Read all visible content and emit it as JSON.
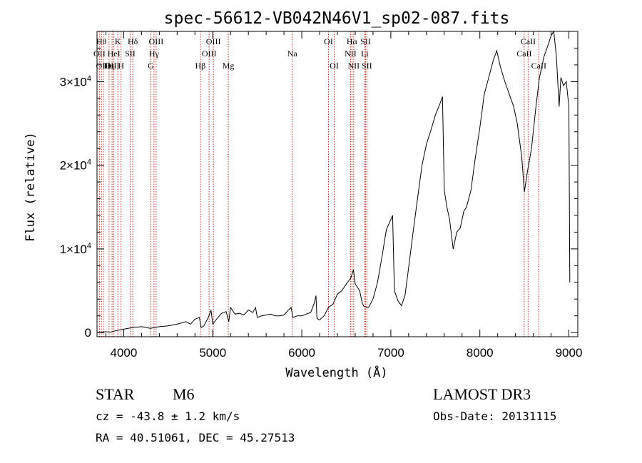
{
  "chart_data": {
    "type": "line",
    "title": "spec-56612-VB042N46V1_sp02-087.fits",
    "xlabel": "Wavelength (Å)",
    "ylabel": "Flux (relative)",
    "xlim": [
      3700,
      9100
    ],
    "ylim": [
      -500,
      36000
    ],
    "x_ticks": [
      4000,
      5000,
      6000,
      7000,
      8000,
      9000
    ],
    "y_ticks": [
      {
        "value": 0,
        "mant": "0",
        "exp": ""
      },
      {
        "value": 10000,
        "mant": "1×10",
        "exp": "4"
      },
      {
        "value": 20000,
        "mant": "2×10",
        "exp": "4"
      },
      {
        "value": 30000,
        "mant": "3×10",
        "exp": "4"
      }
    ],
    "spectral_lines": [
      {
        "wave": 3727,
        "label": "OII",
        "row": 2
      },
      {
        "wave": 3750,
        "label": "Hθ",
        "row": 1
      },
      {
        "wave": 3771,
        "label": "OIII",
        "row": 3
      },
      {
        "wave": 3835,
        "label": "Hη",
        "row": 3
      },
      {
        "wave": 3869,
        "label": "OIII",
        "row": 3
      },
      {
        "wave": 3889,
        "label": "HeI",
        "row": 2
      },
      {
        "wave": 3934,
        "label": "K",
        "row": 1
      },
      {
        "wave": 3970,
        "label": "H",
        "row": 3
      },
      {
        "wave": 4072,
        "label": "SII",
        "row": 2
      },
      {
        "wave": 4102,
        "label": "Hδ",
        "row": 1
      },
      {
        "wave": 4305,
        "label": "G",
        "row": 3
      },
      {
        "wave": 4340,
        "label": "Hγ",
        "row": 2
      },
      {
        "wave": 4364,
        "label": "OIII",
        "row": 1
      },
      {
        "wave": 4861,
        "label": "Hβ",
        "row": 3
      },
      {
        "wave": 4959,
        "label": "OIII",
        "row": 2
      },
      {
        "wave": 5007,
        "label": "OIII",
        "row": 1
      },
      {
        "wave": 5175,
        "label": "Mg",
        "row": 3
      },
      {
        "wave": 5893,
        "label": "Na",
        "row": 2
      },
      {
        "wave": 6300,
        "label": "OI",
        "row": 1
      },
      {
        "wave": 6364,
        "label": "OI",
        "row": 3
      },
      {
        "wave": 6548,
        "label": "NII",
        "row": 2
      },
      {
        "wave": 6563,
        "label": "Hα",
        "row": 1
      },
      {
        "wave": 6583,
        "label": "NII",
        "row": 3
      },
      {
        "wave": 6707,
        "label": "Li",
        "row": 2
      },
      {
        "wave": 6716,
        "label": "SII",
        "row": 1
      },
      {
        "wave": 6731,
        "label": "SII",
        "row": 3
      },
      {
        "wave": 8498,
        "label": "CaII",
        "row": 2
      },
      {
        "wave": 8542,
        "label": "CaII",
        "row": 1
      },
      {
        "wave": 8662,
        "label": "CaII",
        "row": 3
      }
    ],
    "series": [
      {
        "name": "flux",
        "points": [
          [
            3700,
            0
          ],
          [
            3800,
            100
          ],
          [
            3850,
            50
          ],
          [
            3900,
            200
          ],
          [
            4000,
            400
          ],
          [
            4100,
            600
          ],
          [
            4200,
            700
          ],
          [
            4300,
            500
          ],
          [
            4400,
            700
          ],
          [
            4500,
            800
          ],
          [
            4600,
            1000
          ],
          [
            4700,
            1300
          ],
          [
            4750,
            1000
          ],
          [
            4800,
            1600
          ],
          [
            4850,
            1800
          ],
          [
            4870,
            600
          ],
          [
            4900,
            800
          ],
          [
            4950,
            1800
          ],
          [
            4980,
            2700
          ],
          [
            5000,
            1000
          ],
          [
            5050,
            1700
          ],
          [
            5100,
            2300
          ],
          [
            5150,
            2500
          ],
          [
            5180,
            1300
          ],
          [
            5200,
            3000
          ],
          [
            5250,
            2200
          ],
          [
            5300,
            2300
          ],
          [
            5350,
            2100
          ],
          [
            5400,
            2700
          ],
          [
            5450,
            2400
          ],
          [
            5480,
            3000
          ],
          [
            5500,
            1800
          ],
          [
            5550,
            2000
          ],
          [
            5600,
            2100
          ],
          [
            5650,
            2200
          ],
          [
            5700,
            2000
          ],
          [
            5750,
            2000
          ],
          [
            5800,
            2100
          ],
          [
            5850,
            2700
          ],
          [
            5880,
            3000
          ],
          [
            5900,
            1800
          ],
          [
            5950,
            2000
          ],
          [
            6000,
            2000
          ],
          [
            6050,
            2200
          ],
          [
            6100,
            2400
          ],
          [
            6140,
            3500
          ],
          [
            6160,
            4400
          ],
          [
            6170,
            1700
          ],
          [
            6200,
            1500
          ],
          [
            6250,
            2000
          ],
          [
            6300,
            3000
          ],
          [
            6350,
            3400
          ],
          [
            6400,
            4600
          ],
          [
            6450,
            5000
          ],
          [
            6500,
            5800
          ],
          [
            6550,
            6500
          ],
          [
            6580,
            7500
          ],
          [
            6600,
            5800
          ],
          [
            6650,
            5000
          ],
          [
            6680,
            3500
          ],
          [
            6700,
            3100
          ],
          [
            6750,
            3000
          ],
          [
            6800,
            4000
          ],
          [
            6850,
            6000
          ],
          [
            6900,
            9000
          ],
          [
            6950,
            12300
          ],
          [
            7000,
            13500
          ],
          [
            7020,
            14000
          ],
          [
            7040,
            5000
          ],
          [
            7080,
            3800
          ],
          [
            7120,
            3200
          ],
          [
            7160,
            4500
          ],
          [
            7200,
            7800
          ],
          [
            7250,
            12000
          ],
          [
            7300,
            16000
          ],
          [
            7350,
            20000
          ],
          [
            7400,
            22500
          ],
          [
            7450,
            24200
          ],
          [
            7500,
            26000
          ],
          [
            7550,
            27300
          ],
          [
            7580,
            28200
          ],
          [
            7600,
            17000
          ],
          [
            7630,
            15000
          ],
          [
            7660,
            13500
          ],
          [
            7700,
            10000
          ],
          [
            7740,
            12000
          ],
          [
            7780,
            12500
          ],
          [
            7820,
            14500
          ],
          [
            7850,
            15000
          ],
          [
            7900,
            17000
          ],
          [
            7950,
            21000
          ],
          [
            8000,
            24500
          ],
          [
            8050,
            28500
          ],
          [
            8100,
            30500
          ],
          [
            8150,
            32500
          ],
          [
            8190,
            33700
          ],
          [
            8230,
            31800
          ],
          [
            8280,
            30000
          ],
          [
            8330,
            28500
          ],
          [
            8380,
            27000
          ],
          [
            8420,
            25000
          ],
          [
            8470,
            21000
          ],
          [
            8500,
            16800
          ],
          [
            8530,
            19000
          ],
          [
            8580,
            22000
          ],
          [
            8630,
            27000
          ],
          [
            8670,
            30500
          ],
          [
            8720,
            33000
          ],
          [
            8770,
            34500
          ],
          [
            8800,
            35500
          ],
          [
            8830,
            36000
          ],
          [
            8860,
            33000
          ],
          [
            8890,
            27000
          ],
          [
            8910,
            30500
          ],
          [
            8940,
            29500
          ],
          [
            8970,
            30000
          ],
          [
            9000,
            27000
          ],
          [
            9010,
            6000
          ]
        ]
      }
    ]
  },
  "footer": {
    "object_type": "STAR",
    "subclass": "M6",
    "survey": "LAMOST DR3",
    "cz": "cz = -43.8 ± 1.2 km/s",
    "obs_date": "Obs-Date: 20131115",
    "coords": "RA =  40.51061, DEC =  45.27513"
  }
}
